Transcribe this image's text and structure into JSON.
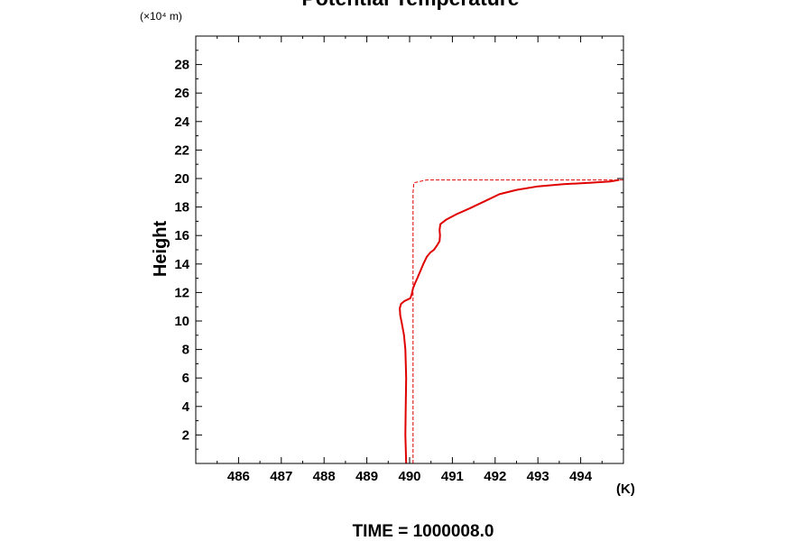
{
  "chart_data": {
    "type": "line",
    "title": "Potential Temperature",
    "ylabel": "Height",
    "y_unit_note": "(×10⁴ m)",
    "x_unit": "(K)",
    "time_label": "TIME = 1000008.0",
    "xlim": [
      485,
      495
    ],
    "ylim": [
      0,
      30
    ],
    "xticks": [
      486,
      487,
      488,
      489,
      490,
      491,
      492,
      493,
      494
    ],
    "yticks": [
      2,
      4,
      6,
      8,
      10,
      12,
      14,
      16,
      18,
      20,
      22,
      24,
      26,
      28
    ],
    "grid": false,
    "colors": {
      "series": "#e00000",
      "axes": "#000000"
    },
    "series": [
      {
        "style": "solid",
        "x": [
          489.92,
          489.9,
          489.91,
          489.92,
          489.9,
          489.87,
          489.82,
          489.78,
          489.77,
          489.8,
          489.88,
          489.95,
          490.02,
          490.05,
          490.08,
          490.12,
          490.18,
          490.25,
          490.32,
          490.4,
          490.48,
          490.57,
          490.64,
          490.7,
          490.71,
          490.7,
          490.72,
          490.85,
          491.1,
          491.4,
          491.75,
          492.1,
          492.5,
          493.0,
          493.6,
          494.2,
          494.7,
          494.9
        ],
        "y": [
          0.0,
          2.0,
          4.0,
          6.0,
          8.0,
          9.0,
          9.8,
          10.4,
          10.9,
          11.2,
          11.4,
          11.5,
          11.6,
          11.9,
          12.3,
          12.6,
          13.0,
          13.5,
          14.0,
          14.5,
          14.8,
          15.0,
          15.3,
          15.6,
          16.0,
          16.4,
          16.8,
          17.1,
          17.5,
          17.9,
          18.4,
          18.9,
          19.2,
          19.45,
          19.6,
          19.7,
          19.8,
          19.9
        ]
      },
      {
        "style": "dashed",
        "x": [
          490.08,
          490.08,
          490.08,
          490.1,
          490.4,
          491.0,
          492.0,
          493.0,
          494.0,
          495.0
        ],
        "y": [
          0.0,
          10.0,
          19.0,
          19.7,
          19.9,
          19.9,
          19.9,
          19.9,
          19.9,
          19.9
        ]
      }
    ]
  }
}
